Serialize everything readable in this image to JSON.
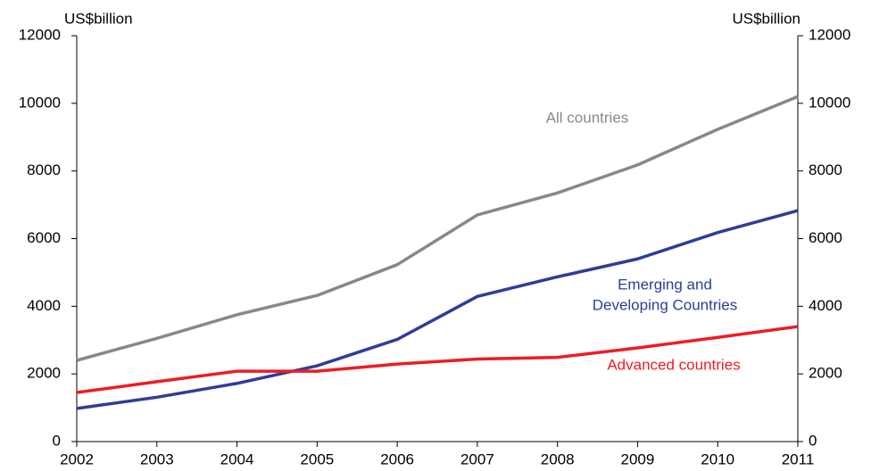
{
  "chart_data": {
    "type": "line",
    "y_label": "US$billion",
    "y2_label": "US$billion",
    "x": [
      2002,
      2003,
      2004,
      2005,
      2006,
      2007,
      2008,
      2009,
      2010,
      2011
    ],
    "xlim": [
      2002,
      2011
    ],
    "xticks": [
      2002,
      2003,
      2004,
      2005,
      2006,
      2007,
      2008,
      2009,
      2010,
      2011
    ],
    "ylim": [
      0,
      12000
    ],
    "yticks": [
      0,
      2000,
      4000,
      6000,
      8000,
      10000,
      12000
    ],
    "y2lim": [
      0,
      12000
    ],
    "y2ticks": [
      0,
      2000,
      4000,
      6000,
      8000,
      10000,
      12000
    ],
    "series": [
      {
        "label": [
          "All countries"
        ],
        "color": "#888888",
        "values": [
          2400,
          3050,
          3750,
          4320,
          5230,
          6700,
          7350,
          8180,
          9230,
          10200
        ]
      },
      {
        "label": [
          "Emerging  and",
          "Developing Countries"
        ],
        "color": "#2e3d98",
        "values": [
          980,
          1310,
          1720,
          2240,
          3020,
          4290,
          4870,
          5400,
          6180,
          6830
        ]
      },
      {
        "label": [
          "Advanced countries"
        ],
        "color": "#ee1c25",
        "values": [
          1450,
          1770,
          2080,
          2080,
          2290,
          2440,
          2490,
          2770,
          3080,
          3400
        ]
      }
    ]
  }
}
